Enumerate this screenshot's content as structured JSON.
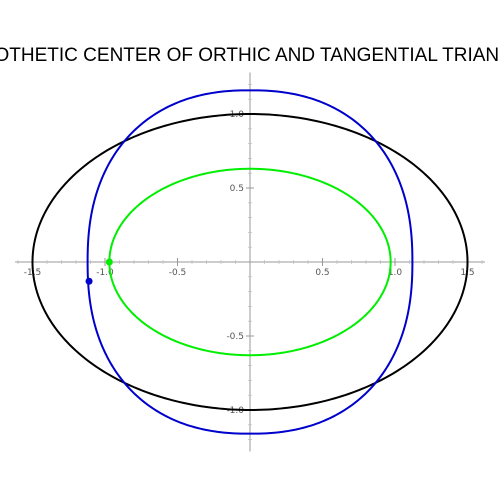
{
  "chart_data": {
    "type": "line",
    "title": "HOMOTHETIC CENTER OF ORTHIC AND TANGENTIAL TRIANGLES",
    "xlabel": "",
    "ylabel": "",
    "xlim": [
      -1.62,
      1.62
    ],
    "ylim": [
      -1.28,
      1.28
    ],
    "grid": false,
    "x_ticks": [
      {
        "value": -1.5,
        "label": "-1.5"
      },
      {
        "value": -1.0,
        "label": "-1.0"
      },
      {
        "value": -0.5,
        "label": "-0.5"
      },
      {
        "value": 0.5,
        "label": "0.5"
      },
      {
        "value": 1.0,
        "label": "1.0"
      },
      {
        "value": 1.5,
        "label": "1.5"
      }
    ],
    "y_ticks": [
      {
        "value": 1.0,
        "label": "1.0"
      },
      {
        "value": 0.5,
        "label": "0.5"
      },
      {
        "value": -0.5,
        "label": "-0.5"
      },
      {
        "value": -1.0,
        "label": "-1.0"
      }
    ],
    "series": [
      {
        "shape": "ellipse",
        "color": "#000000",
        "cx": 0,
        "cy": 0,
        "rx": 1.5,
        "ry": 1.0
      },
      {
        "shape": "ellipse",
        "color": "#00ee00",
        "cx": 0,
        "cy": 0,
        "rx": 0.97,
        "ry": 0.63
      },
      {
        "shape": "superellipse",
        "color": "#0000cc",
        "cx": 0,
        "cy": 0,
        "rx": 1.12,
        "ry": 1.16,
        "n": 2.3
      }
    ],
    "points": [
      {
        "color": "#0000cc",
        "x": -1.11,
        "y": -0.13
      },
      {
        "color": "#00ee00",
        "x": -0.97,
        "y": 0.0
      }
    ]
  }
}
